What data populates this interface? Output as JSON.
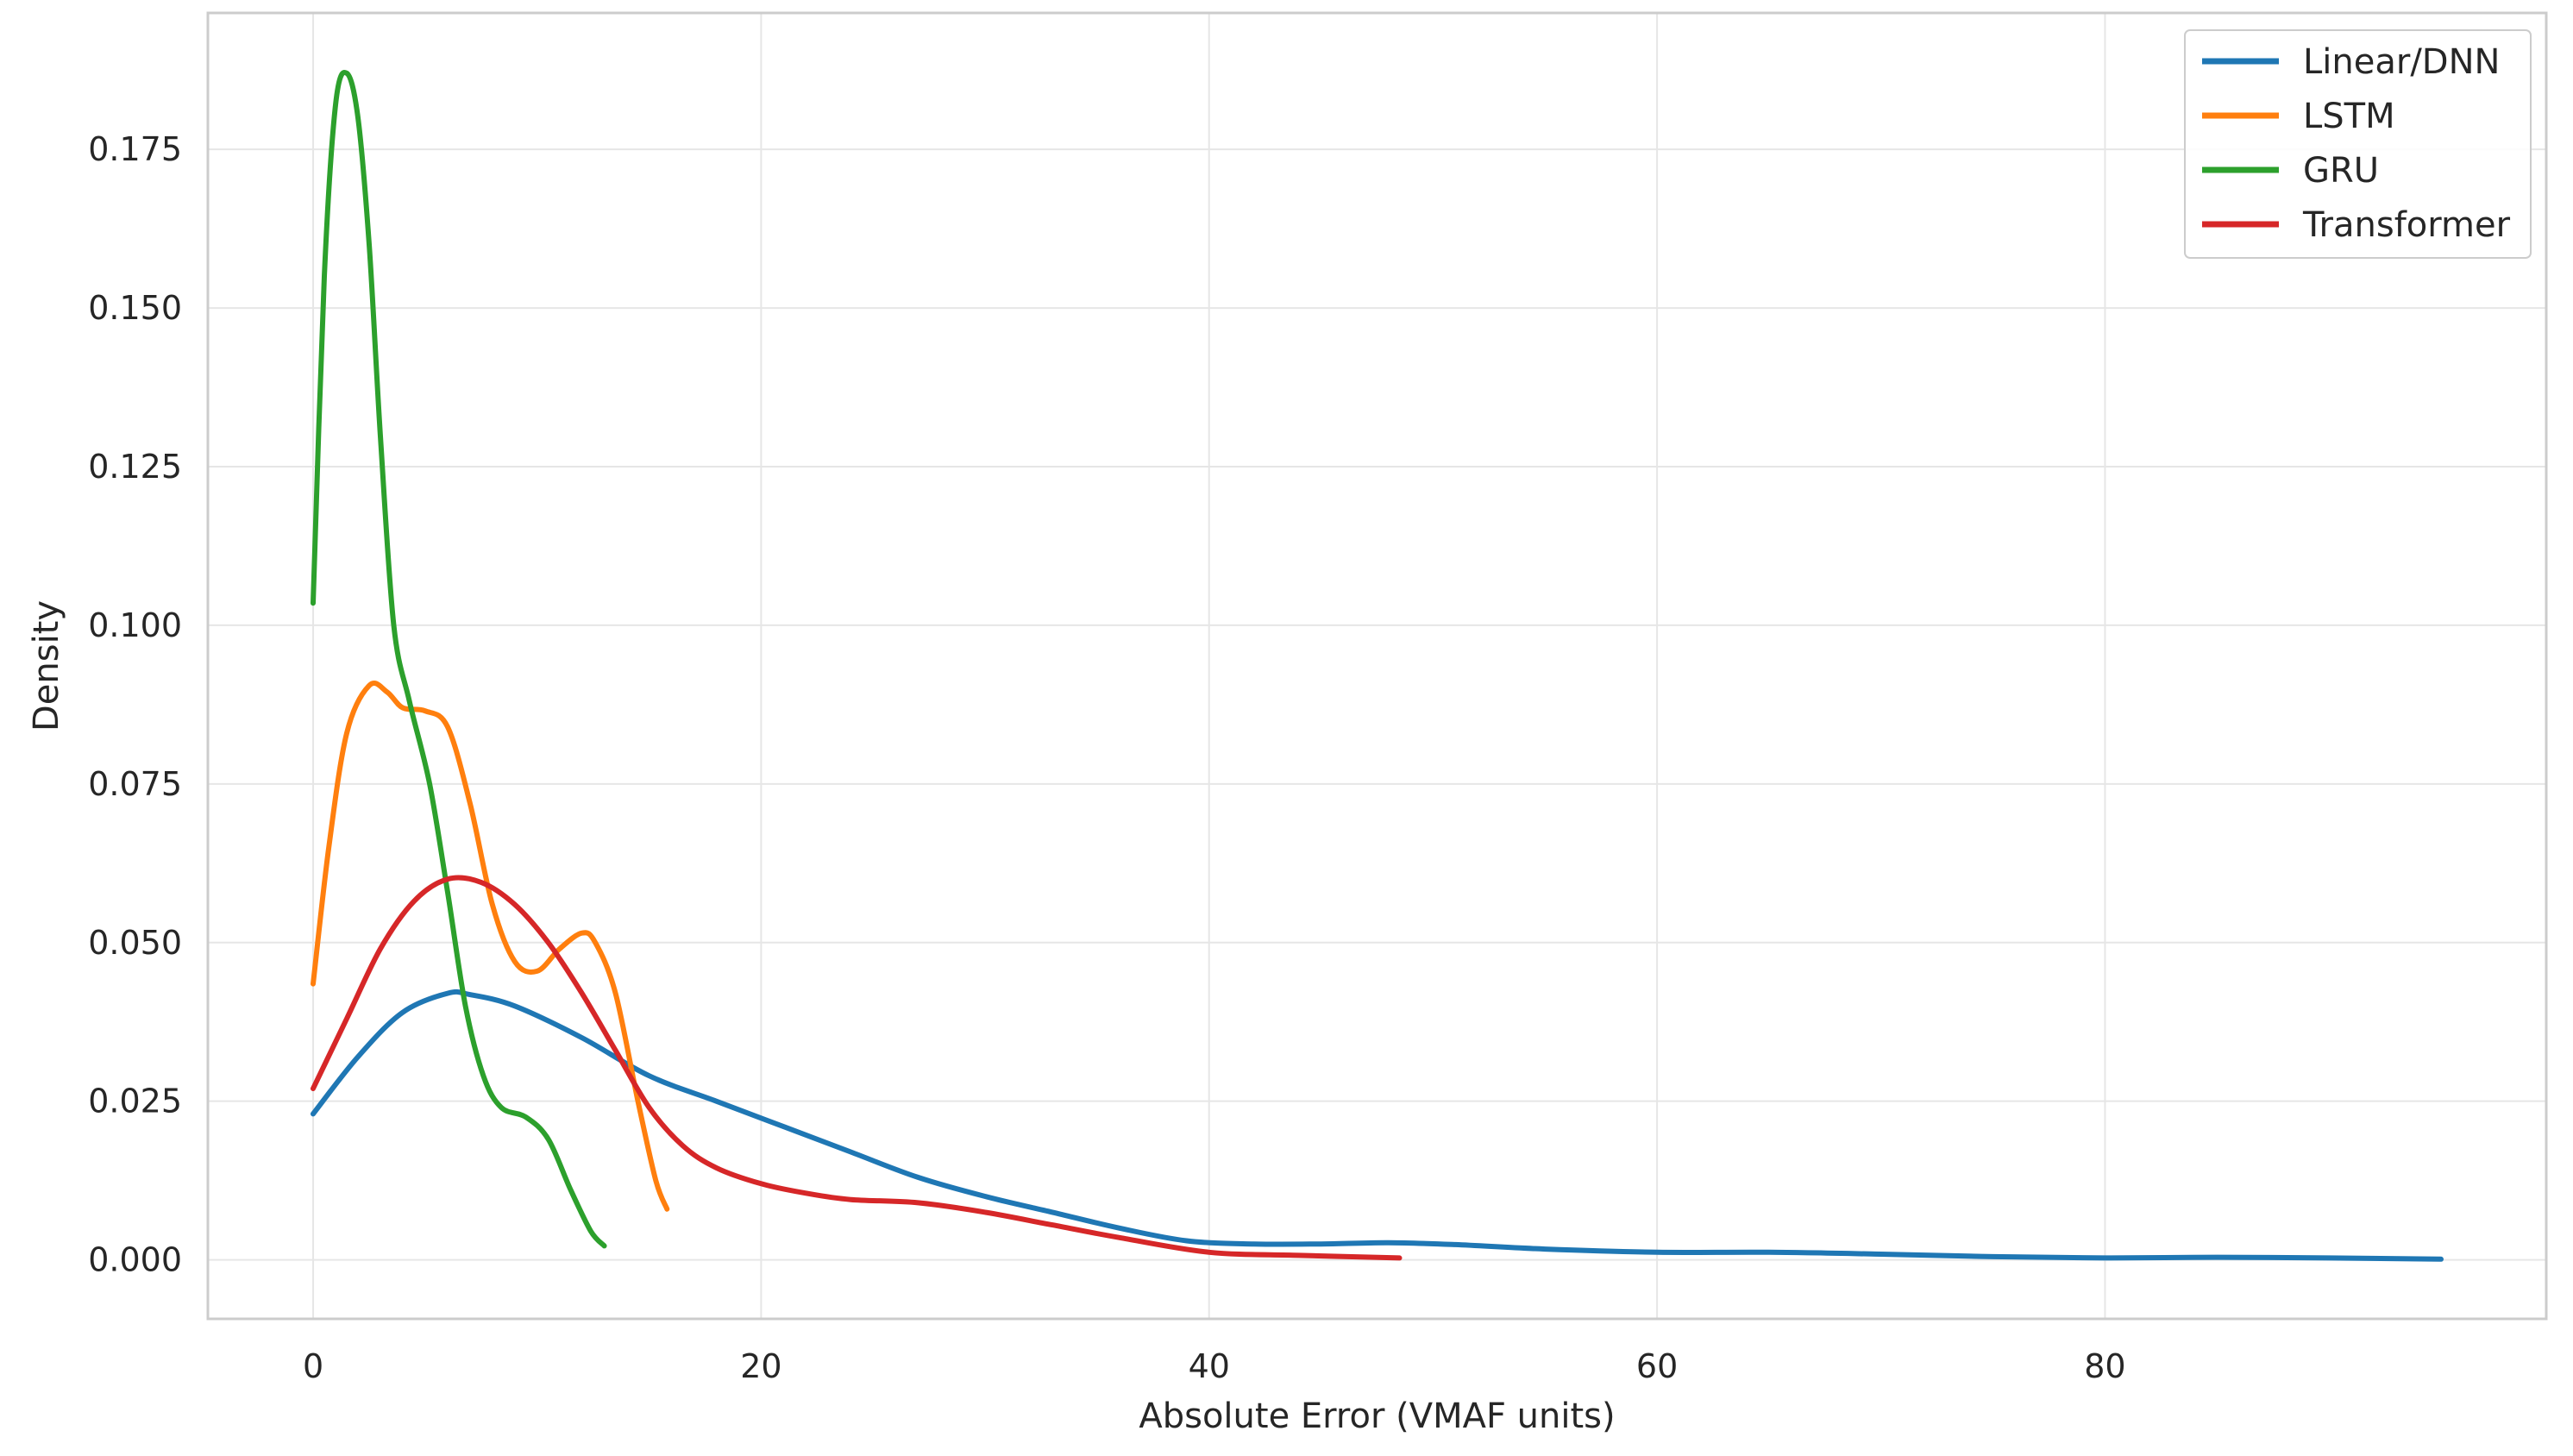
{
  "chart_data": {
    "type": "line",
    "title": "",
    "xlabel": "Absolute Error (VMAF units)",
    "ylabel": "Density",
    "xlim": [
      -4.7,
      99.7
    ],
    "ylim": [
      -0.0093,
      0.1965
    ],
    "xticks": [
      0,
      20,
      40,
      60,
      80
    ],
    "xtick_labels": [
      "0",
      "20",
      "40",
      "60",
      "80"
    ],
    "yticks": [
      0.0,
      0.025,
      0.05,
      0.075,
      0.1,
      0.125,
      0.15,
      0.175
    ],
    "ytick_labels": [
      "0.000",
      "0.025",
      "0.050",
      "0.075",
      "0.100",
      "0.125",
      "0.150",
      "0.175"
    ],
    "grid": true,
    "legend_position": "top-right",
    "series": [
      {
        "name": "Linear/DNN",
        "color": "#1f77b4",
        "points": [
          [
            0,
            0.023
          ],
          [
            2,
            0.032
          ],
          [
            4,
            0.039
          ],
          [
            6,
            0.042
          ],
          [
            7,
            0.0418
          ],
          [
            9,
            0.04
          ],
          [
            12,
            0.035
          ],
          [
            15,
            0.029
          ],
          [
            18,
            0.025
          ],
          [
            21,
            0.021
          ],
          [
            24,
            0.017
          ],
          [
            27,
            0.013
          ],
          [
            30,
            0.01
          ],
          [
            33,
            0.0075
          ],
          [
            36,
            0.005
          ],
          [
            39,
            0.003
          ],
          [
            42,
            0.0025
          ],
          [
            45,
            0.0025
          ],
          [
            48,
            0.0027
          ],
          [
            51,
            0.0024
          ],
          [
            55,
            0.0017
          ],
          [
            60,
            0.0012
          ],
          [
            65,
            0.0012
          ],
          [
            70,
            0.0009
          ],
          [
            75,
            0.0005
          ],
          [
            80,
            0.0003
          ],
          [
            85,
            0.0004
          ],
          [
            90,
            0.0003
          ],
          [
            95,
            0.0001
          ]
        ]
      },
      {
        "name": "LSTM",
        "color": "#ff7f0e",
        "points": [
          [
            0,
            0.0435
          ],
          [
            0.7,
            0.065
          ],
          [
            1.5,
            0.083
          ],
          [
            2.5,
            0.0905
          ],
          [
            3.3,
            0.0895
          ],
          [
            4,
            0.087
          ],
          [
            5,
            0.0865
          ],
          [
            6,
            0.084
          ],
          [
            7,
            0.072
          ],
          [
            8,
            0.056
          ],
          [
            9,
            0.047
          ],
          [
            10,
            0.0455
          ],
          [
            11,
            0.049
          ],
          [
            12,
            0.0515
          ],
          [
            12.6,
            0.05
          ],
          [
            13.5,
            0.042
          ],
          [
            14.5,
            0.025
          ],
          [
            15.3,
            0.0125
          ],
          [
            15.8,
            0.008
          ]
        ]
      },
      {
        "name": "GRU",
        "color": "#2ca02c",
        "points": [
          [
            0,
            0.1035
          ],
          [
            0.5,
            0.155
          ],
          [
            1,
            0.182
          ],
          [
            1.5,
            0.187
          ],
          [
            2,
            0.18
          ],
          [
            2.5,
            0.16
          ],
          [
            3,
            0.13
          ],
          [
            3.6,
            0.1
          ],
          [
            4.3,
            0.088
          ],
          [
            5.2,
            0.075
          ],
          [
            6,
            0.058
          ],
          [
            6.8,
            0.04
          ],
          [
            7.6,
            0.029
          ],
          [
            8.4,
            0.024
          ],
          [
            9.5,
            0.0225
          ],
          [
            10.5,
            0.019
          ],
          [
            11.5,
            0.011
          ],
          [
            12.4,
            0.0045
          ],
          [
            13,
            0.0022
          ]
        ]
      },
      {
        "name": "Transformer",
        "color": "#d62728",
        "points": [
          [
            0,
            0.027
          ],
          [
            1.5,
            0.038
          ],
          [
            3,
            0.049
          ],
          [
            4.5,
            0.0565
          ],
          [
            6,
            0.06
          ],
          [
            7.5,
            0.0595
          ],
          [
            9,
            0.056
          ],
          [
            10.5,
            0.05
          ],
          [
            12,
            0.042
          ],
          [
            13.5,
            0.033
          ],
          [
            15,
            0.024
          ],
          [
            16.5,
            0.018
          ],
          [
            18,
            0.0145
          ],
          [
            20,
            0.012
          ],
          [
            22,
            0.0105
          ],
          [
            24,
            0.0095
          ],
          [
            27,
            0.009
          ],
          [
            30,
            0.0075
          ],
          [
            33,
            0.0055
          ],
          [
            36,
            0.0035
          ],
          [
            40,
            0.0012
          ],
          [
            44,
            0.0007
          ],
          [
            48.5,
            0.0003
          ]
        ]
      }
    ]
  }
}
